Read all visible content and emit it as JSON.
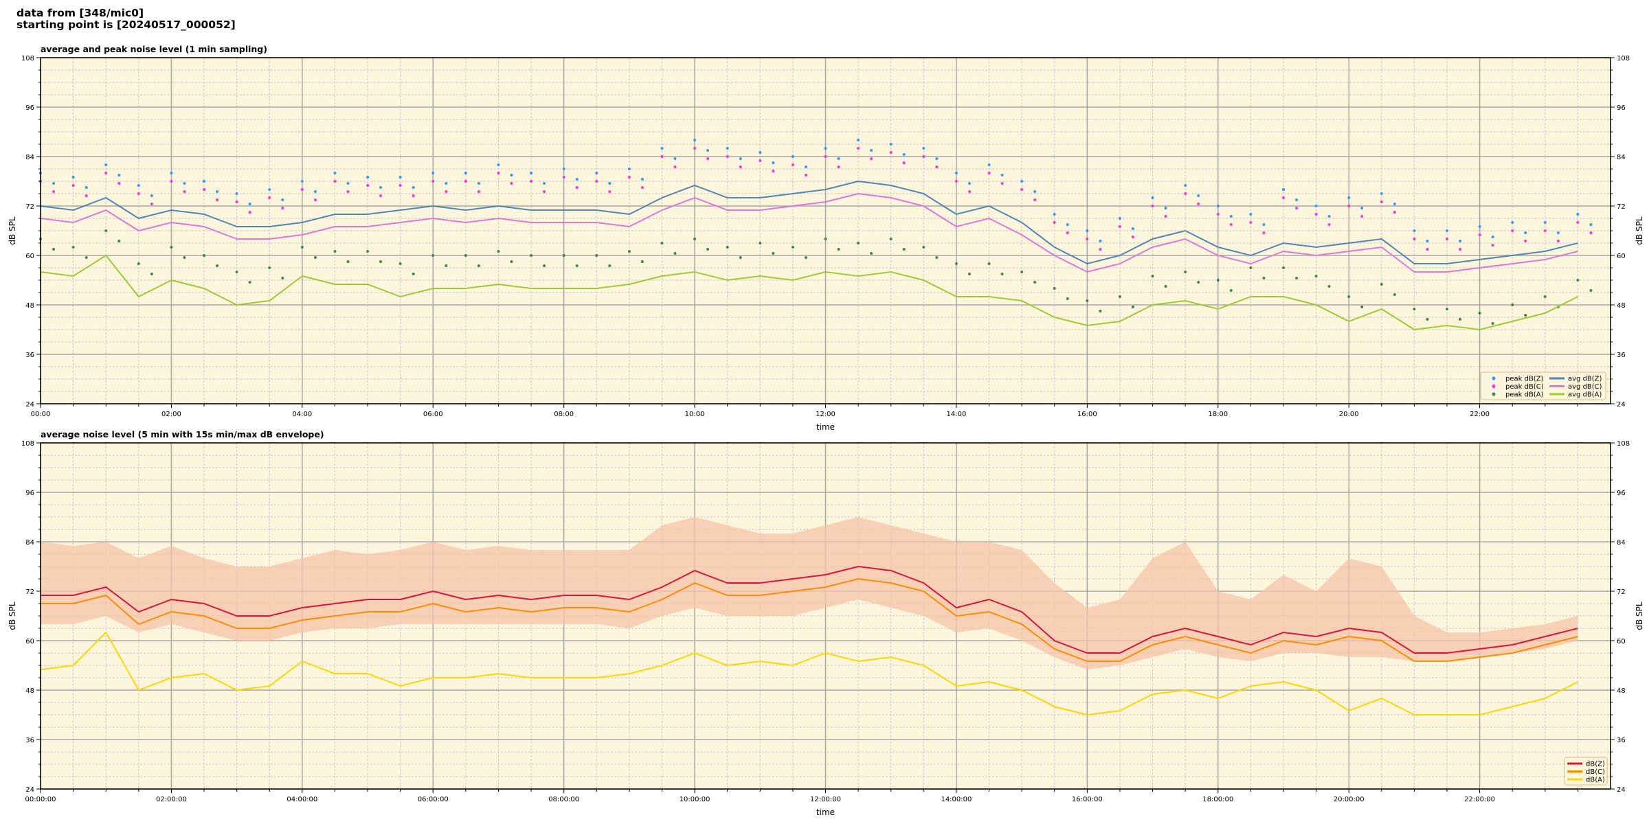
{
  "header": {
    "line1": "data from [348/mic0]",
    "line2": "starting point is [20240517_000052]"
  },
  "chart_data": [
    {
      "type": "line",
      "title": "average and peak noise level (1 min sampling)",
      "xlabel": "time",
      "ylabel": "dB SPL",
      "xlim_hours": [
        0,
        24
      ],
      "ylim": [
        24,
        108
      ],
      "yticks": [
        24,
        36,
        48,
        60,
        72,
        84,
        96,
        108
      ],
      "xticks_hours": [
        0,
        2,
        4,
        6,
        8,
        10,
        12,
        14,
        16,
        18,
        20,
        22
      ],
      "xtick_labels": [
        "00:00",
        "02:00",
        "04:00",
        "06:00",
        "08:00",
        "10:00",
        "12:00",
        "14:00",
        "16:00",
        "18:00",
        "20:00",
        "22:00"
      ],
      "grid": true,
      "background": "#fdf5dc",
      "legend_position": "bottom-right",
      "x_step_hours": 0.5,
      "series": [
        {
          "name": "peak dB(Z)",
          "kind": "scatter",
          "color": "#3399ff",
          "values": [
            80,
            79,
            82,
            77,
            80,
            78,
            75,
            76,
            78,
            80,
            79,
            79,
            80,
            80,
            82,
            80,
            81,
            80,
            81,
            86,
            88,
            86,
            85,
            84,
            86,
            88,
            87,
            86,
            80,
            82,
            78,
            70,
            66,
            69,
            74,
            77,
            72,
            70,
            76,
            72,
            74,
            75,
            66,
            66,
            67,
            68,
            68,
            70
          ]
        },
        {
          "name": "peak dB(C)",
          "kind": "scatter",
          "color": "#ff33dd",
          "values": [
            78,
            77,
            80,
            75,
            78,
            76,
            73,
            74,
            76,
            78,
            77,
            77,
            78,
            78,
            80,
            78,
            79,
            78,
            79,
            84,
            86,
            84,
            83,
            82,
            84,
            86,
            85,
            84,
            78,
            80,
            76,
            68,
            64,
            67,
            72,
            75,
            70,
            68,
            74,
            70,
            72,
            73,
            64,
            64,
            65,
            66,
            66,
            68
          ]
        },
        {
          "name": "peak dB(A)",
          "kind": "scatter",
          "color": "#3a8a50",
          "values": [
            64,
            62,
            66,
            58,
            62,
            60,
            56,
            57,
            62,
            61,
            61,
            58,
            60,
            60,
            61,
            60,
            60,
            60,
            61,
            63,
            64,
            62,
            63,
            62,
            64,
            63,
            64,
            62,
            58,
            58,
            56,
            52,
            49,
            50,
            55,
            56,
            54,
            57,
            57,
            55,
            50,
            53,
            47,
            47,
            46,
            48,
            50,
            54
          ]
        },
        {
          "name": "avg dB(Z)",
          "kind": "line",
          "color": "#4f86b8",
          "values": [
            72,
            71,
            74,
            69,
            71,
            70,
            67,
            67,
            68,
            70,
            70,
            71,
            72,
            71,
            72,
            71,
            71,
            71,
            70,
            74,
            77,
            74,
            74,
            75,
            76,
            78,
            77,
            75,
            70,
            72,
            68,
            62,
            58,
            60,
            64,
            66,
            62,
            60,
            63,
            62,
            63,
            64,
            58,
            58,
            59,
            60,
            61,
            63
          ]
        },
        {
          "name": "avg dB(C)",
          "kind": "line",
          "color": "#dd77dd",
          "values": [
            69,
            68,
            71,
            66,
            68,
            67,
            64,
            64,
            65,
            67,
            67,
            68,
            69,
            68,
            69,
            68,
            68,
            68,
            67,
            71,
            74,
            71,
            71,
            72,
            73,
            75,
            74,
            72,
            67,
            69,
            65,
            60,
            56,
            58,
            62,
            64,
            60,
            58,
            61,
            60,
            61,
            62,
            56,
            56,
            57,
            58,
            59,
            61
          ]
        },
        {
          "name": "avg dB(A)",
          "kind": "line",
          "color": "#9acd32",
          "values": [
            56,
            55,
            60,
            50,
            54,
            52,
            48,
            49,
            55,
            53,
            53,
            50,
            52,
            52,
            53,
            52,
            52,
            52,
            53,
            55,
            56,
            54,
            55,
            54,
            56,
            55,
            56,
            54,
            50,
            50,
            49,
            45,
            43,
            44,
            48,
            49,
            47,
            50,
            50,
            48,
            44,
            47,
            42,
            43,
            42,
            44,
            46,
            50
          ]
        }
      ]
    },
    {
      "type": "line",
      "title": "average noise level (5 min with 15s min/max dB envelope)",
      "xlabel": "time",
      "ylabel": "dB SPL",
      "xlim_hours": [
        0,
        24
      ],
      "ylim": [
        24,
        108
      ],
      "yticks": [
        24,
        36,
        48,
        60,
        72,
        84,
        96,
        108
      ],
      "xticks_hours": [
        0,
        2,
        4,
        6,
        8,
        10,
        12,
        14,
        16,
        18,
        20,
        22
      ],
      "xtick_labels": [
        "00:00:00",
        "02:00:00",
        "04:00:00",
        "06:00:00",
        "08:00:00",
        "10:00:00",
        "12:00:00",
        "14:00:00",
        "16:00:00",
        "18:00:00",
        "20:00:00",
        "22:00:00"
      ],
      "grid": true,
      "background": "#fdf5dc",
      "legend_position": "bottom-right",
      "x_step_hours": 0.5,
      "envelope": {
        "color": "#f5c3a8",
        "max": [
          84,
          83,
          84,
          80,
          83,
          80,
          78,
          78,
          80,
          82,
          81,
          82,
          84,
          82,
          83,
          82,
          82,
          82,
          82,
          88,
          90,
          88,
          86,
          86,
          88,
          90,
          88,
          86,
          84,
          84,
          82,
          74,
          68,
          70,
          80,
          84,
          72,
          70,
          76,
          72,
          80,
          78,
          66,
          62,
          62,
          63,
          64,
          66
        ],
        "min": [
          64,
          64,
          66,
          62,
          64,
          62,
          60,
          60,
          62,
          63,
          63,
          64,
          64,
          64,
          64,
          64,
          64,
          64,
          63,
          66,
          68,
          66,
          66,
          66,
          68,
          70,
          68,
          66,
          62,
          63,
          60,
          56,
          53,
          54,
          56,
          58,
          56,
          55,
          57,
          57,
          56,
          56,
          55,
          55,
          56,
          57,
          58,
          60
        ]
      },
      "series": [
        {
          "name": "dB(Z)",
          "kind": "line",
          "color": "#dc143c",
          "values": [
            71,
            71,
            73,
            67,
            70,
            69,
            66,
            66,
            68,
            69,
            70,
            70,
            72,
            70,
            71,
            70,
            71,
            71,
            70,
            73,
            77,
            74,
            74,
            75,
            76,
            78,
            77,
            74,
            68,
            70,
            67,
            60,
            57,
            57,
            61,
            63,
            61,
            59,
            62,
            61,
            63,
            62,
            57,
            57,
            58,
            59,
            61,
            63
          ]
        },
        {
          "name": "dB(C)",
          "kind": "line",
          "color": "#ff8c00",
          "values": [
            69,
            69,
            71,
            64,
            67,
            66,
            63,
            63,
            65,
            66,
            67,
            67,
            69,
            67,
            68,
            67,
            68,
            68,
            67,
            70,
            74,
            71,
            71,
            72,
            73,
            75,
            74,
            72,
            66,
            67,
            64,
            58,
            55,
            55,
            59,
            61,
            59,
            57,
            60,
            59,
            61,
            60,
            55,
            55,
            56,
            57,
            59,
            61
          ]
        },
        {
          "name": "dB(A)",
          "kind": "line",
          "color": "#ffd700",
          "values": [
            53,
            54,
            62,
            48,
            51,
            52,
            48,
            49,
            55,
            52,
            52,
            49,
            51,
            51,
            52,
            51,
            51,
            51,
            52,
            54,
            57,
            54,
            55,
            54,
            57,
            55,
            56,
            54,
            49,
            50,
            48,
            44,
            42,
            43,
            47,
            48,
            46,
            49,
            50,
            48,
            43,
            46,
            42,
            42,
            42,
            44,
            46,
            50
          ]
        }
      ]
    }
  ]
}
